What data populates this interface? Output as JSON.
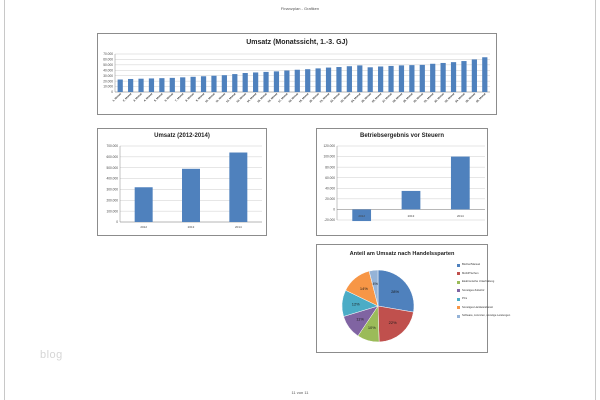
{
  "page": {
    "header": "Finanzplan - Grafiken",
    "footer": "11 von 11",
    "watermark": "blog"
  },
  "colors": {
    "bar": "#4f81bd",
    "grid": "#bfbfbf",
    "axis": "#888888",
    "pie": [
      "#4f81bd",
      "#c0504d",
      "#9bbb59",
      "#8064a2",
      "#4bacc6",
      "#f79646",
      "#95b3d7"
    ]
  },
  "chart_data": [
    {
      "type": "bar",
      "title": "Umsatz (Monatssicht, 1.-3. GJ)",
      "categories": [
        "1. Monat",
        "2. Monat",
        "3. Monat",
        "4. Monat",
        "5. Monat",
        "6. Monat",
        "7. Monat",
        "8. Monat",
        "9. Monat",
        "10. Monat",
        "11. Monat",
        "12. Monat",
        "13. Monat",
        "14. Monat",
        "15. Monat",
        "16. Monat",
        "17. Monat",
        "18. Monat",
        "19. Monat",
        "20. Monat",
        "21. Monat",
        "22. Monat",
        "23. Monat",
        "24. Monat",
        "25. Monat",
        "26. Monat",
        "27. Monat",
        "28. Monat",
        "29. Monat",
        "30. Monat",
        "31. Monat",
        "32. Monat",
        "33. Monat",
        "34. Monat",
        "35. Monat",
        "36. Monat"
      ],
      "values": [
        23000,
        24000,
        24500,
        25000,
        25500,
        26000,
        27000,
        28000,
        29000,
        30000,
        31000,
        33000,
        35000,
        36000,
        37000,
        38000,
        39500,
        41000,
        42000,
        43500,
        45000,
        46000,
        47500,
        49000,
        45500,
        47000,
        48000,
        49000,
        49500,
        50000,
        52000,
        53500,
        55000,
        57000,
        60000,
        64000
      ],
      "yticks": [
        "0",
        "10.000",
        "20.000",
        "30.000",
        "40.000",
        "50.000",
        "60.000",
        "70.000"
      ],
      "ylim": [
        0,
        70000
      ]
    },
    {
      "type": "bar",
      "title": "Umsatz (2012-2014)",
      "categories": [
        "2012",
        "2013",
        "2014"
      ],
      "values": [
        320000,
        490000,
        640000
      ],
      "yticks": [
        "0",
        "100.000",
        "200.000",
        "300.000",
        "400.000",
        "500.000",
        "600.000",
        "700.000"
      ],
      "ylim": [
        0,
        700000
      ]
    },
    {
      "type": "bar",
      "title": "Betriebsergebnis vor Steuern",
      "categories": [
        "2012",
        "2013",
        "2014"
      ],
      "values": [
        -22000,
        35000,
        100000
      ],
      "yticks": [
        "-20.000",
        "0",
        "20.000",
        "40.000",
        "60.000",
        "80.000",
        "100.000",
        "120.000"
      ],
      "ylim": [
        -20000,
        120000
      ]
    },
    {
      "type": "pie",
      "title": "Anteil am Umsatz nach Handelssparten",
      "values": [
        28,
        22,
        10,
        11,
        12,
        14,
        4
      ],
      "labels": [
        "28%",
        "22%",
        "10%",
        "11%",
        "12%",
        "14%",
        "4%"
      ],
      "legend": [
        "Bücher/Manuel",
        "Mobil/Tischen",
        "Elektronische Unterhaltung",
        "Sonstiges Zubehör",
        "PCs",
        "Sonstiges Hardwarebereit",
        "Software, Lizenzen, sonstige Leistungen"
      ]
    }
  ]
}
